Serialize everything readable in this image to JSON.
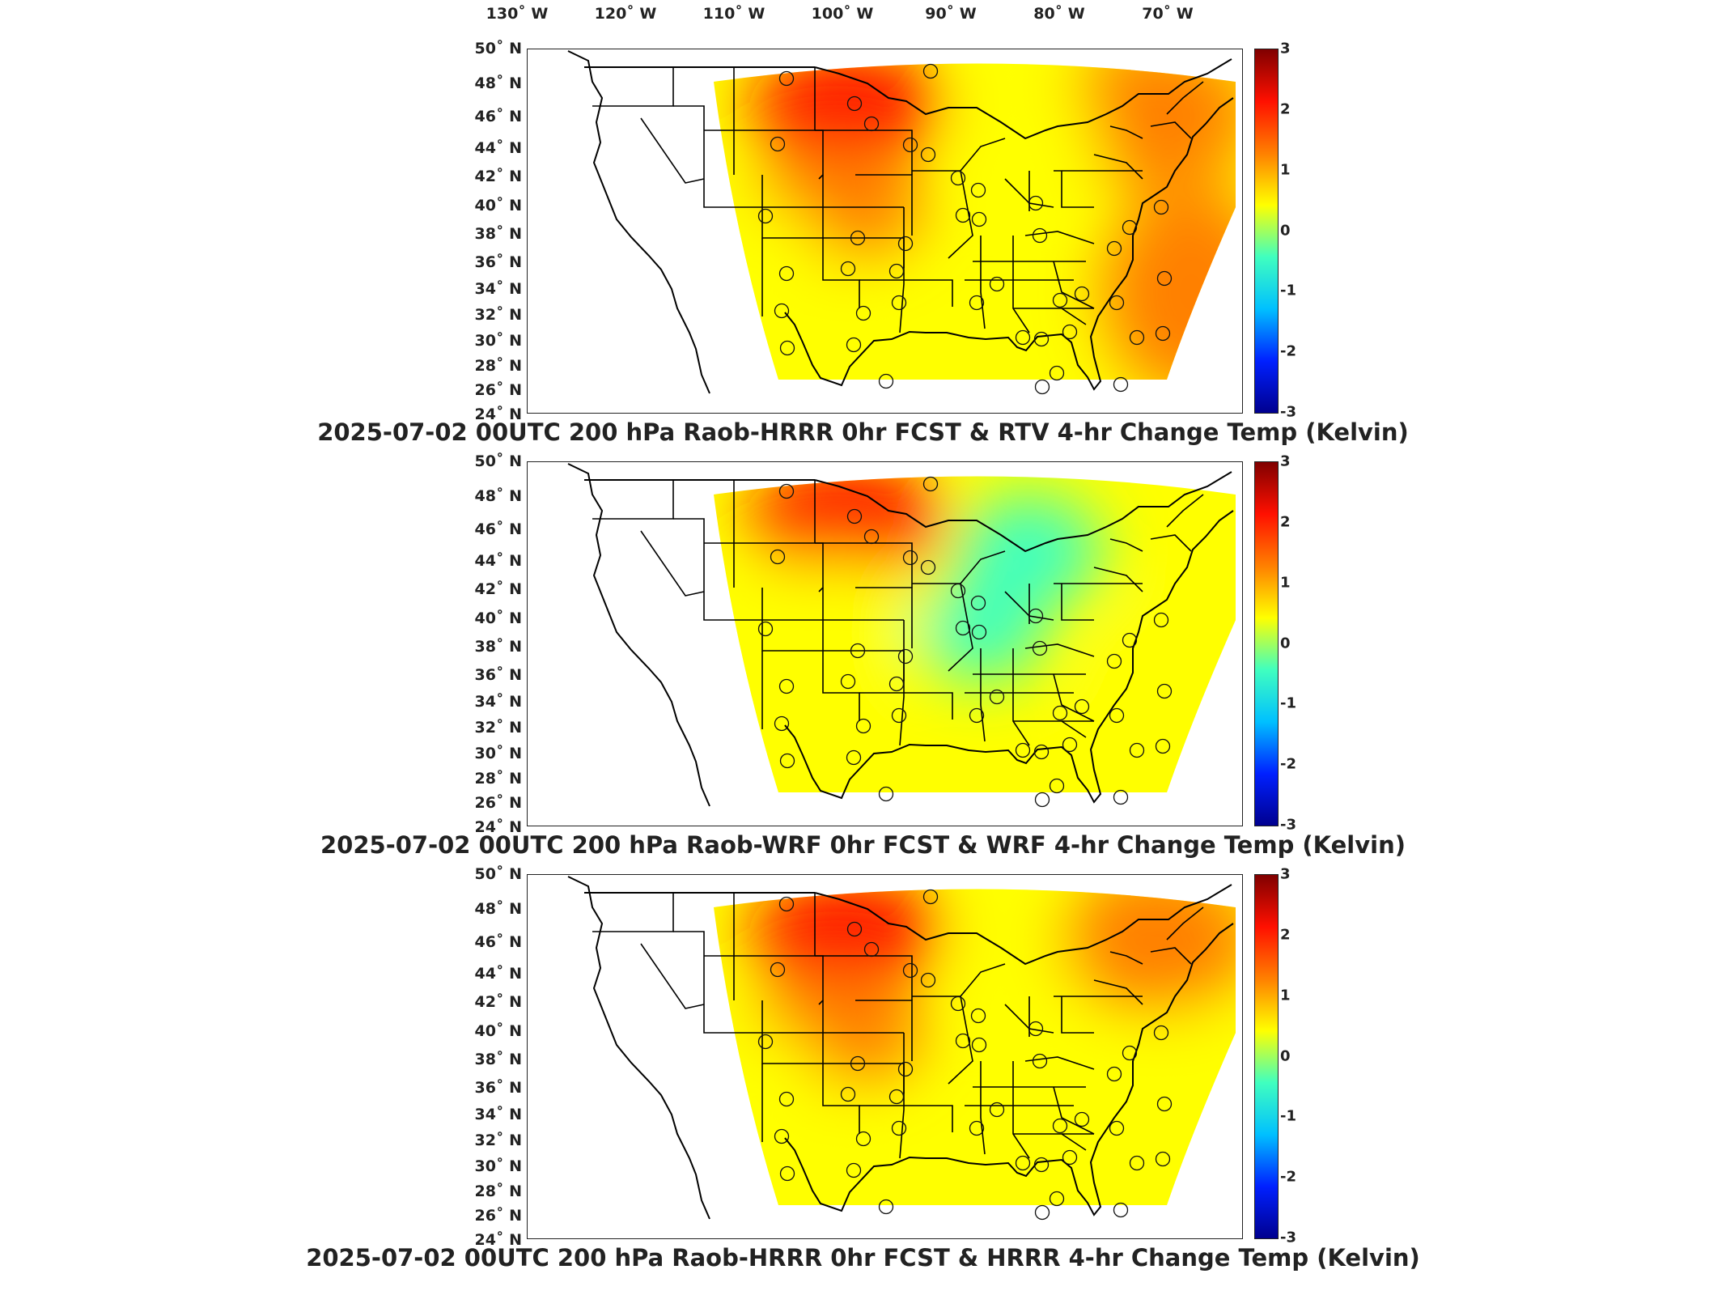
{
  "lon_labels": [
    "130˚ W",
    "120˚ W",
    "110˚ W",
    "100˚ W",
    "90˚ W",
    "80˚ W",
    "70˚ W"
  ],
  "lat_labels": [
    "50˚ N",
    "48˚ N",
    "46˚ N",
    "44˚ N",
    "42˚ N",
    "40˚ N",
    "38˚ N",
    "36˚ N",
    "34˚ N",
    "32˚ N",
    "30˚ N",
    "28˚ N",
    "26˚ N",
    "24˚ N"
  ],
  "colorbar": {
    "ticks": [
      "3",
      "2",
      "1",
      "0",
      "-1",
      "-2",
      "-3"
    ],
    "min": -3,
    "max": 3,
    "colors": [
      "#00008f",
      "#0020ff",
      "#00c0ff",
      "#40ffbf",
      "#ffff00",
      "#ff8000",
      "#ff1000",
      "#800000"
    ]
  },
  "panels": [
    {
      "title": "2025-07-02 00UTC 200 hPa Raob-HRRR 0hr FCST & RTV 4-hr Change Temp (Kelvin)",
      "field_regions": [
        {
          "name": "northern plains",
          "value": 2.0
        },
        {
          "name": "central plains",
          "value": 1.3
        },
        {
          "name": "northeast",
          "value": 1.5
        },
        {
          "name": "atlantic",
          "value": 1.0
        },
        {
          "name": "southwest",
          "value": 0.6
        },
        {
          "name": "great lakes",
          "value": 0.3
        }
      ]
    },
    {
      "title": "2025-07-02 00UTC 200 hPa Raob-WRF 0hr FCST & WRF 4-hr Change Temp (Kelvin)",
      "field_regions": [
        {
          "name": "northern plains",
          "value": 1.8
        },
        {
          "name": "central plains",
          "value": 0.8
        },
        {
          "name": "great lakes",
          "value": -0.6
        },
        {
          "name": "ohio valley",
          "value": -0.3
        },
        {
          "name": "atlantic",
          "value": 0.1
        },
        {
          "name": "southwest",
          "value": 0.3
        }
      ]
    },
    {
      "title": "2025-07-02 00UTC 200 hPa Raob-HRRR 0hr FCST & HRRR 4-hr Change Temp (Kelvin)",
      "field_regions": [
        {
          "name": "northern plains",
          "value": 1.9
        },
        {
          "name": "central plains",
          "value": 0.9
        },
        {
          "name": "great lakes",
          "value": 0.0
        },
        {
          "name": "northeast",
          "value": 1.2
        },
        {
          "name": "atlantic",
          "value": 0.6
        },
        {
          "name": "southwest",
          "value": 0.3
        }
      ]
    }
  ]
}
